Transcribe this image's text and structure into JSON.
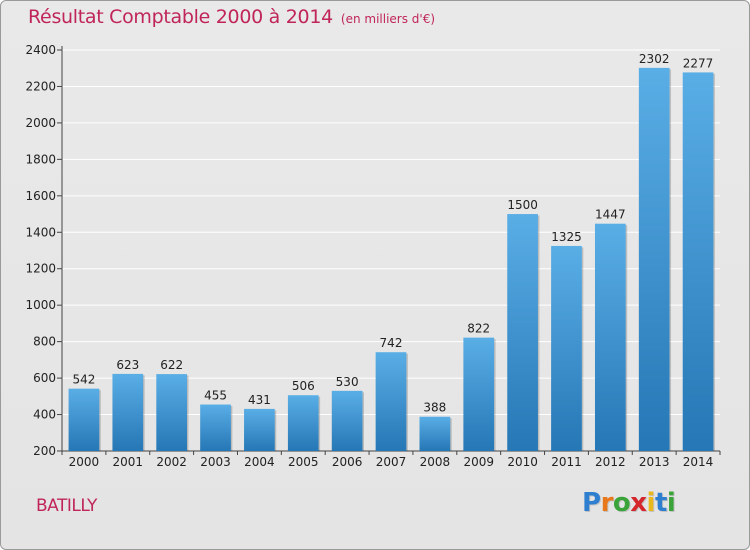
{
  "title": "Résultat Comptable 2000 à 2014",
  "subtitle": "(en milliers d'€)",
  "place": "BATILLY",
  "logo": {
    "letters": [
      {
        "char": "P",
        "color": "#2f7fd0"
      },
      {
        "char": "r",
        "color": "#e8781c"
      },
      {
        "char": "o",
        "color": "#3aa33a"
      },
      {
        "char": "x",
        "color": "#d4262c"
      },
      {
        "char": "i",
        "color": "#e8b81c"
      },
      {
        "char": "t",
        "color": "#2f7fd0"
      },
      {
        "char": "i",
        "color": "#3aa33a"
      }
    ]
  },
  "colors": {
    "accent": "#c0255a",
    "bar_light": "#5aaee6",
    "bar_dark": "#2577b5"
  },
  "chart_data": {
    "type": "bar",
    "categories": [
      "2000",
      "2001",
      "2002",
      "2003",
      "2004",
      "2005",
      "2006",
      "2007",
      "2008",
      "2009",
      "2010",
      "2011",
      "2012",
      "2013",
      "2014"
    ],
    "values": [
      542,
      623,
      622,
      455,
      431,
      506,
      530,
      742,
      388,
      822,
      1500,
      1325,
      1447,
      2302,
      2277
    ],
    "ylim": [
      200,
      2400
    ],
    "yticks": [
      200,
      400,
      600,
      800,
      1000,
      1200,
      1400,
      1600,
      1800,
      2000,
      2200,
      2400
    ],
    "grid": true
  }
}
